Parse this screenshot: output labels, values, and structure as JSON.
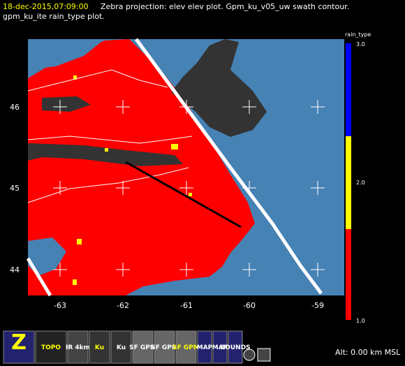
{
  "header": {
    "time": "18-dec-2015,07:09:00",
    "line1": "Zebra projection: elev elev  plot.  Gpm_ku_v05_uw swath contour.",
    "line2": "gpm_ku_ite rain_type  plot."
  },
  "map": {
    "xticks": [
      "-63",
      "-62",
      "-61",
      "-60",
      "-59"
    ],
    "yticks": [
      "46",
      "45",
      "44"
    ]
  },
  "colorbar": {
    "title": "rain_type",
    "labels": [
      "3.0",
      "2.0",
      "1.0"
    ]
  },
  "toolbar": [
    "Z",
    "TOPO",
    "IR 4km",
    "Ku",
    "Ku",
    "SF GPM",
    "SF GPM",
    "SF GPM",
    "MAP",
    "MAP",
    "BOUNDS"
  ],
  "status": "Alt: 0.00 km MSL"
}
